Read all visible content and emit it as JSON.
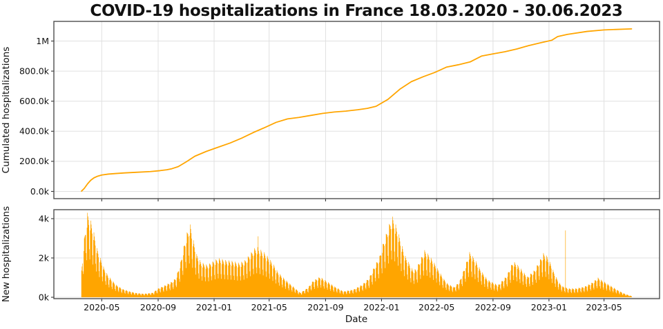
{
  "figure": {
    "title": "COVID-19 hospitalizations in France 18.03.2020 - 30.06.2023",
    "background": "#ffffff",
    "accent_color": "#FFA500",
    "spine_color": "#4d4d4d",
    "grid_color": "#e0e0e0",
    "tick_color": "#333333",
    "text_color": "#111111"
  },
  "x_axis": {
    "label": "Date",
    "ticks": [
      "2020-05",
      "2020-09",
      "2021-01",
      "2021-05",
      "2021-09",
      "2022-01",
      "2022-05",
      "2022-09",
      "2023-01",
      "2023-05"
    ],
    "data_range": [
      "2020-03-18",
      "2023-06-30"
    ]
  },
  "chart_data": [
    {
      "type": "line",
      "name": "cumulated-hospitalizations",
      "ylabel": "Cumulated hospitalizations",
      "color": "#FFA500",
      "grid": true,
      "legend": "none",
      "ylim": [
        -50000,
        1128000
      ],
      "yticks": [
        [
          0,
          "0.0k"
        ],
        [
          200000,
          "200.0k"
        ],
        [
          400000,
          "400.0k"
        ],
        [
          600000,
          "600.0k"
        ],
        [
          800000,
          "800.0k"
        ],
        [
          1000000,
          "1M"
        ]
      ],
      "points": [
        [
          "2020-03-18",
          2000
        ],
        [
          "2020-03-24",
          20000
        ],
        [
          "2020-03-31",
          50000
        ],
        [
          "2020-04-07",
          74000
        ],
        [
          "2020-04-14",
          90000
        ],
        [
          "2020-04-22",
          101000
        ],
        [
          "2020-05-01",
          109000
        ],
        [
          "2020-05-15",
          115000
        ],
        [
          "2020-06-01",
          119000
        ],
        [
          "2020-06-20",
          123000
        ],
        [
          "2020-07-15",
          127000
        ],
        [
          "2020-08-15",
          132000
        ],
        [
          "2020-09-05",
          138000
        ],
        [
          "2020-09-20",
          144000
        ],
        [
          "2020-10-01",
          151000
        ],
        [
          "2020-10-15",
          165000
        ],
        [
          "2020-11-01",
          196000
        ],
        [
          "2020-11-20",
          234000
        ],
        [
          "2020-12-15",
          266000
        ],
        [
          "2021-01-10",
          294000
        ],
        [
          "2021-02-05",
          322000
        ],
        [
          "2021-03-02",
          354000
        ],
        [
          "2021-03-27",
          391000
        ],
        [
          "2021-04-21",
          424000
        ],
        [
          "2021-05-16",
          459000
        ],
        [
          "2021-06-10",
          482000
        ],
        [
          "2021-07-05",
          492000
        ],
        [
          "2021-08-01",
          506000
        ],
        [
          "2021-08-26",
          519000
        ],
        [
          "2021-09-20",
          528000
        ],
        [
          "2021-10-15",
          534000
        ],
        [
          "2021-11-10",
          543000
        ],
        [
          "2021-12-01",
          552000
        ],
        [
          "2021-12-20",
          566000
        ],
        [
          "2022-01-15",
          612000
        ],
        [
          "2022-02-10",
          680000
        ],
        [
          "2022-03-07",
          730000
        ],
        [
          "2022-04-02",
          763000
        ],
        [
          "2022-04-27",
          791000
        ],
        [
          "2022-05-23",
          827000
        ],
        [
          "2022-06-17",
          842000
        ],
        [
          "2022-07-13",
          861000
        ],
        [
          "2022-08-07",
          900000
        ],
        [
          "2022-09-02",
          915000
        ],
        [
          "2022-09-27",
          929000
        ],
        [
          "2022-10-23",
          947000
        ],
        [
          "2022-11-17",
          969000
        ],
        [
          "2022-12-13",
          988000
        ],
        [
          "2023-01-07",
          1005000
        ],
        [
          "2023-01-20",
          1030000
        ],
        [
          "2023-02-10",
          1044000
        ],
        [
          "2023-03-25",
          1064000
        ],
        [
          "2023-05-01",
          1074000
        ],
        [
          "2023-06-30",
          1081000
        ]
      ]
    },
    {
      "type": "bar",
      "name": "new-hospitalizations",
      "ylabel": "New hospitalizations",
      "color": "#FFA500",
      "grid": true,
      "legend": "none",
      "ylim": [
        -90,
        4460
      ],
      "yticks": [
        [
          0,
          "0k"
        ],
        [
          2000,
          "2k"
        ],
        [
          4000,
          "4k"
        ]
      ],
      "start": "2020-03-18",
      "end": "2023-06-30",
      "weekday_factors_sun_to_sat": [
        0.48,
        0.86,
        1.0,
        0.97,
        0.94,
        0.89,
        0.6
      ],
      "spikes": [
        [
          "2021-04-07",
          3100
        ],
        [
          "2023-02-06",
          3400
        ]
      ],
      "envelope": [
        [
          "2020-03-18",
          1400
        ],
        [
          "2020-03-24",
          3000
        ],
        [
          "2020-03-31",
          4300
        ],
        [
          "2020-04-07",
          3900
        ],
        [
          "2020-04-14",
          3300
        ],
        [
          "2020-04-21",
          2500
        ],
        [
          "2020-04-28",
          2000
        ],
        [
          "2020-05-06",
          1500
        ],
        [
          "2020-05-15",
          1100
        ],
        [
          "2020-06-01",
          650
        ],
        [
          "2020-06-15",
          430
        ],
        [
          "2020-07-01",
          300
        ],
        [
          "2020-07-15",
          220
        ],
        [
          "2020-08-01",
          180
        ],
        [
          "2020-08-20",
          230
        ],
        [
          "2020-09-01",
          450
        ],
        [
          "2020-09-15",
          600
        ],
        [
          "2020-10-01",
          800
        ],
        [
          "2020-10-10",
          1000
        ],
        [
          "2020-10-20",
          1800
        ],
        [
          "2020-10-27",
          2600
        ],
        [
          "2020-11-03",
          3300
        ],
        [
          "2020-11-10",
          3700
        ],
        [
          "2020-11-17",
          2900
        ],
        [
          "2020-11-24",
          2200
        ],
        [
          "2020-12-03",
          1800
        ],
        [
          "2020-12-17",
          1650
        ],
        [
          "2021-01-10",
          2000
        ],
        [
          "2021-01-25",
          1900
        ],
        [
          "2021-02-10",
          1850
        ],
        [
          "2021-02-25",
          1750
        ],
        [
          "2021-03-10",
          1900
        ],
        [
          "2021-03-20",
          2200
        ],
        [
          "2021-03-30",
          2500
        ],
        [
          "2021-04-06",
          2550
        ],
        [
          "2021-04-14",
          2400
        ],
        [
          "2021-04-22",
          2250
        ],
        [
          "2021-05-01",
          2000
        ],
        [
          "2021-05-10",
          1700
        ],
        [
          "2021-05-20",
          1300
        ],
        [
          "2021-06-01",
          1000
        ],
        [
          "2021-06-15",
          700
        ],
        [
          "2021-07-08",
          230
        ],
        [
          "2021-07-25",
          500
        ],
        [
          "2021-08-05",
          850
        ],
        [
          "2021-08-20",
          1050
        ],
        [
          "2021-09-05",
          800
        ],
        [
          "2021-09-20",
          560
        ],
        [
          "2021-10-10",
          300
        ],
        [
          "2021-11-01",
          400
        ],
        [
          "2021-11-20",
          650
        ],
        [
          "2021-12-05",
          1000
        ],
        [
          "2021-12-17",
          1600
        ],
        [
          "2021-12-28",
          2100
        ],
        [
          "2022-01-05",
          2800
        ],
        [
          "2022-01-12",
          3300
        ],
        [
          "2022-01-19",
          3800
        ],
        [
          "2022-01-25",
          4100
        ],
        [
          "2022-02-01",
          3700
        ],
        [
          "2022-02-08",
          3200
        ],
        [
          "2022-02-15",
          2600
        ],
        [
          "2022-02-22",
          2100
        ],
        [
          "2022-03-01",
          1800
        ],
        [
          "2022-03-10",
          1400
        ],
        [
          "2022-03-18",
          1450
        ],
        [
          "2022-03-26",
          1900
        ],
        [
          "2022-04-05",
          2400
        ],
        [
          "2022-04-15",
          2150
        ],
        [
          "2022-04-25",
          1800
        ],
        [
          "2022-05-05",
          1400
        ],
        [
          "2022-05-15",
          1000
        ],
        [
          "2022-05-25",
          700
        ],
        [
          "2022-06-08",
          520
        ],
        [
          "2022-06-20",
          800
        ],
        [
          "2022-07-01",
          1500
        ],
        [
          "2022-07-12",
          2300
        ],
        [
          "2022-07-22",
          2000
        ],
        [
          "2022-08-05",
          1400
        ],
        [
          "2022-08-20",
          900
        ],
        [
          "2022-09-12",
          620
        ],
        [
          "2022-10-01",
          1100
        ],
        [
          "2022-10-15",
          1850
        ],
        [
          "2022-10-25",
          1650
        ],
        [
          "2022-11-15",
          1050
        ],
        [
          "2022-12-01",
          1400
        ],
        [
          "2022-12-10",
          1800
        ],
        [
          "2022-12-20",
          2250
        ],
        [
          "2022-12-28",
          2100
        ],
        [
          "2023-01-05",
          1700
        ],
        [
          "2023-01-15",
          1100
        ],
        [
          "2023-01-25",
          700
        ],
        [
          "2023-02-01",
          550
        ],
        [
          "2023-02-12",
          450
        ],
        [
          "2023-03-01",
          450
        ],
        [
          "2023-03-20",
          550
        ],
        [
          "2023-04-05",
          750
        ],
        [
          "2023-04-18",
          1000
        ],
        [
          "2023-05-01",
          800
        ],
        [
          "2023-05-15",
          600
        ],
        [
          "2023-06-01",
          350
        ],
        [
          "2023-06-15",
          180
        ],
        [
          "2023-06-30",
          60
        ]
      ]
    }
  ]
}
